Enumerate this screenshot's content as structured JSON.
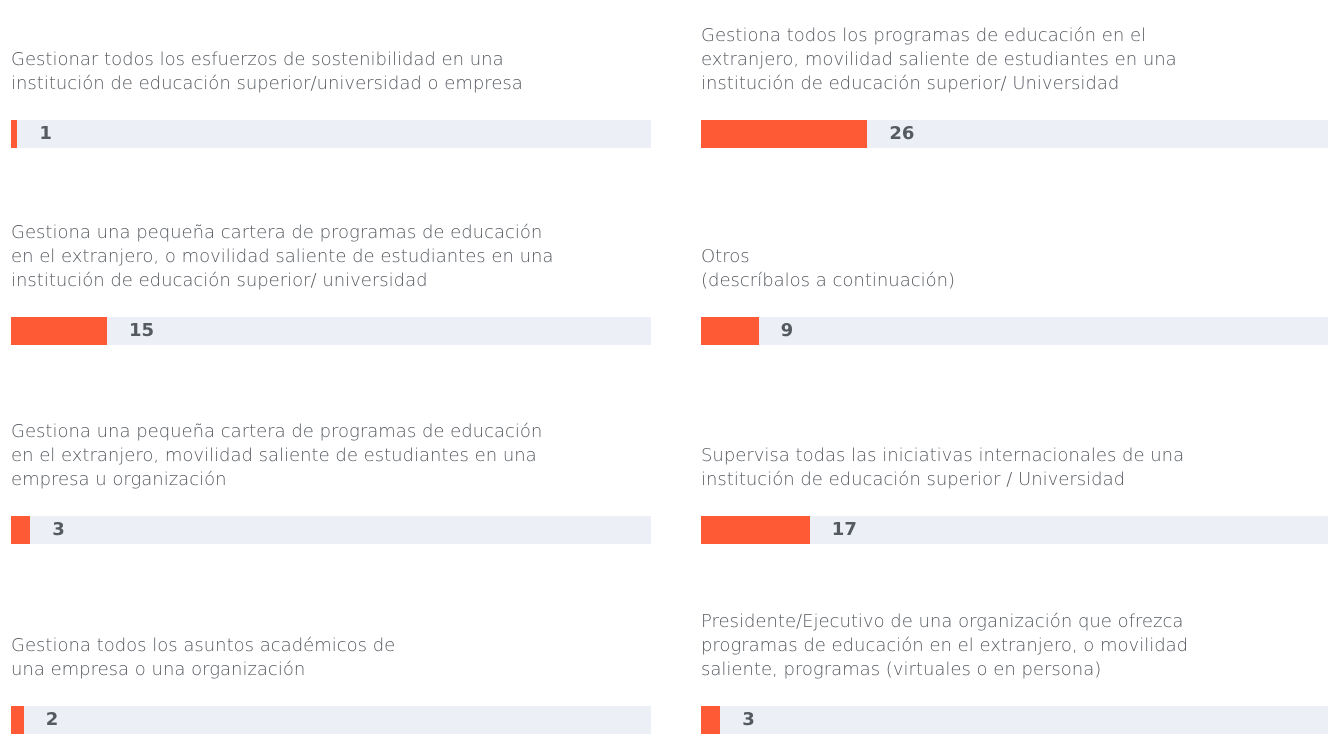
{
  "chart_data": {
    "type": "bar",
    "orientation": "horizontal",
    "categories": [
      "Gestionar todos los esfuerzos de sostenibilidad en una\ninstitución de educación superior/universidad o empresa",
      "Gestiona una pequeña cartera de programas de educación\nen el extranjero, o movilidad saliente de estudiantes en una\ninstitución de educación superior/ universidad",
      "Gestiona una pequeña cartera de programas de educación\nen el extranjero, movilidad saliente de estudiantes en una\nempresa u organización",
      "Gestiona todos los asuntos académicos de\nuna empresa o una organización",
      "Gestiona todos los programas de educación en el\nextranjero, movilidad saliente de estudiantes en una\ninstitución de educación superior/ Universidad",
      "Otros\n(descríbalos a continuación)",
      "Supervisa todas las iniciativas internacionales de una\ninstitución de educación superior / Universidad",
      "Presidente/Ejecutivo de una organización que ofrezca\nprogramas de educación en el extranjero, o movilidad\nsaliente, programas (virtuales o en persona)"
    ],
    "values": [
      1,
      15,
      3,
      2,
      26,
      9,
      17,
      3
    ],
    "xlim": [
      0,
      100
    ],
    "color": "#ff5a36",
    "track_color": "#eceff5"
  }
}
